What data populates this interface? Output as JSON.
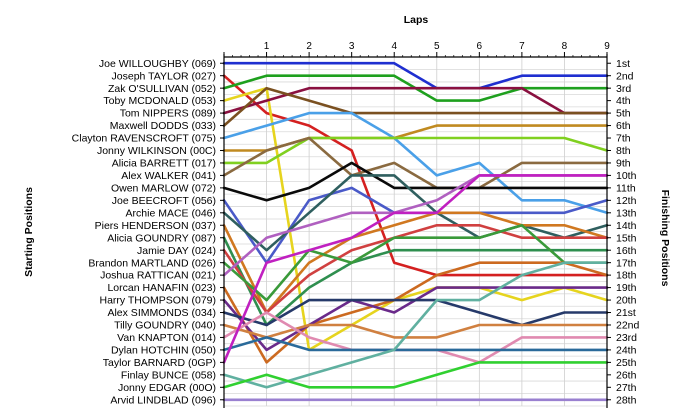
{
  "chart_data": {
    "type": "line",
    "title": "Laps",
    "ylabel_left": "Starting Positions",
    "ylabel_right": "Finishing Positions",
    "laps": [
      1,
      2,
      3,
      4,
      5,
      6,
      7,
      8,
      9
    ],
    "drivers": [
      "Joe WILLOUGHBY (069)",
      "Joseph TAYLOR (027)",
      "Zak O'SULLIVAN (052)",
      "Toby MCDONALD (053)",
      "Tom NIPPERS (089)",
      "Maxwell DODDS (033)",
      "Clayton RAVENSCROFT (075)",
      "Jonny WILKINSON (00C)",
      "Alicia BARRETT (017)",
      "Alex WALKER (041)",
      "Owen MARLOW (072)",
      "Joe BEECROFT (056)",
      "Archie MACE (046)",
      "Piers HENDERSON (037)",
      "Alicia GOUNDRY (087)",
      "Jamie DAY (024)",
      "Brandon MARTLAND (026)",
      "Joshua RATTICAN (021)",
      "Lorcan HANAFIN (023)",
      "Harry THOMPSON (079)",
      "Alex SIMMONDS (034)",
      "Tilly GOUNDRY (040)",
      "Van KNAPTON (014)",
      "Dylan HOTCHIN (050)",
      "Taylor BARNARD (0GP)",
      "Finlay BUNCE (058)",
      "Jonny EDGAR (00O)",
      "Arvid LINDBLAD (096)"
    ],
    "finishing_labels": [
      "1st",
      "2nd",
      "3rd",
      "4th",
      "5th",
      "6th",
      "7th",
      "8th",
      "9th",
      "10th",
      "11th",
      "12th",
      "13th",
      "14th",
      "15th",
      "16th",
      "17th",
      "18th",
      "19th",
      "20th",
      "21st",
      "22nd",
      "23rd",
      "24th",
      "25th",
      "26th",
      "27th",
      "28th"
    ],
    "series": [
      {
        "color": "#1f2fd0",
        "positions": [
          1,
          1,
          1,
          1,
          1,
          3,
          3,
          2,
          2,
          2
        ]
      },
      {
        "color": "#d42020",
        "positions": [
          2,
          5,
          6,
          8,
          17,
          18,
          18,
          18,
          18,
          18
        ]
      },
      {
        "color": "#1ea01e",
        "positions": [
          3,
          2,
          2,
          2,
          2,
          4,
          4,
          3,
          3,
          3
        ]
      },
      {
        "color": "#e6d41e",
        "positions": [
          4,
          3,
          24,
          22,
          20,
          19,
          19,
          20,
          19,
          20
        ]
      },
      {
        "color": "#8a1040",
        "positions": [
          5,
          4,
          3,
          3,
          3,
          3,
          3,
          3,
          5,
          5
        ]
      },
      {
        "color": "#7a5020",
        "positions": [
          6,
          3,
          4,
          5,
          5,
          5,
          5,
          5,
          5,
          5
        ]
      },
      {
        "color": "#4aa0e8",
        "positions": [
          7,
          6,
          5,
          5,
          7,
          10,
          9,
          12,
          12,
          13
        ]
      },
      {
        "color": "#c08a20",
        "positions": [
          8,
          8,
          7,
          7,
          7,
          6,
          6,
          6,
          6,
          6
        ]
      },
      {
        "color": "#80d020",
        "positions": [
          9,
          9,
          7,
          7,
          7,
          7,
          7,
          7,
          7,
          8
        ]
      },
      {
        "color": "#8a6a40",
        "positions": [
          10,
          8,
          7,
          10,
          9,
          11,
          11,
          9,
          9,
          9
        ]
      },
      {
        "color": "#0a0a0a",
        "positions": [
          11,
          12,
          11,
          9,
          11,
          11,
          11,
          11,
          11,
          11
        ]
      },
      {
        "color": "#4a5ac8",
        "positions": [
          12,
          17,
          12,
          11,
          13,
          13,
          13,
          13,
          13,
          12
        ]
      },
      {
        "color": "#2f5f5f",
        "positions": [
          13,
          16,
          13,
          10,
          10,
          13,
          15,
          14,
          15,
          14
        ]
      },
      {
        "color": "#d07820",
        "positions": [
          14,
          21,
          17,
          15,
          14,
          13,
          13,
          14,
          14,
          15
        ]
      },
      {
        "color": "#2f8f4f",
        "positions": [
          15,
          22,
          19,
          17,
          16,
          16,
          16,
          16,
          16,
          16
        ]
      },
      {
        "color": "#d04040",
        "positions": [
          16,
          21,
          18,
          16,
          15,
          14,
          14,
          15,
          15,
          15
        ]
      },
      {
        "color": "#3a9a3a",
        "positions": [
          17,
          20,
          16,
          17,
          15,
          15,
          15,
          14,
          17,
          17
        ]
      },
      {
        "color": "#b060c0",
        "positions": [
          18,
          15,
          14,
          13,
          13,
          12,
          10,
          10,
          10,
          10
        ]
      },
      {
        "color": "#cc6a20",
        "positions": [
          19,
          25,
          22,
          21,
          20,
          18,
          17,
          17,
          17,
          18
        ]
      },
      {
        "color": "#6a2a8a",
        "positions": [
          20,
          24,
          22,
          20,
          21,
          19,
          19,
          19,
          19,
          19
        ]
      },
      {
        "color": "#263a6a",
        "positions": [
          21,
          22,
          20,
          20,
          20,
          20,
          21,
          22,
          21,
          21
        ]
      },
      {
        "color": "#d08040",
        "positions": [
          22,
          23,
          22,
          22,
          23,
          23,
          22,
          22,
          22,
          22
        ]
      },
      {
        "color": "#e08ab0",
        "positions": [
          23,
          21,
          23,
          24,
          24,
          24,
          25,
          23,
          23,
          23
        ]
      },
      {
        "color": "#2a6a9a",
        "positions": [
          24,
          23,
          24,
          24,
          24,
          24,
          24,
          24,
          24,
          24
        ]
      },
      {
        "color": "#c020c0",
        "positions": [
          25,
          17,
          16,
          15,
          13,
          13,
          10,
          10,
          10,
          10
        ]
      },
      {
        "color": "#60b0a0",
        "positions": [
          26,
          27,
          26,
          25,
          24,
          20,
          20,
          18,
          17,
          17
        ]
      },
      {
        "color": "#30d030",
        "positions": [
          27,
          26,
          27,
          27,
          27,
          26,
          25,
          25,
          25,
          25
        ]
      },
      {
        "color": "#9a80d0",
        "positions": [
          28,
          28,
          28,
          28,
          28,
          28,
          28,
          28,
          28,
          28
        ]
      }
    ]
  }
}
